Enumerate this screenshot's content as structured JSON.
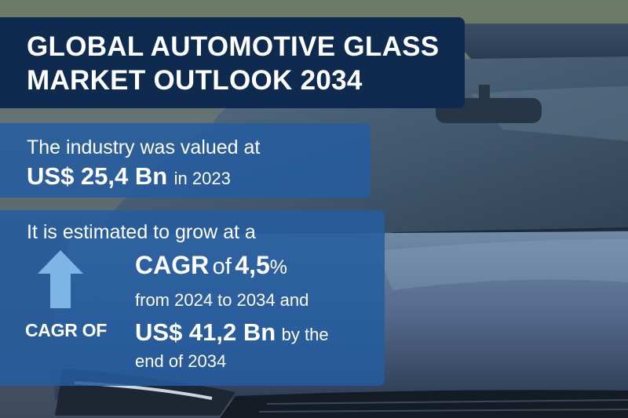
{
  "title": {
    "line1": "GLOBAL AUTOMOTIVE GLASS",
    "line2": "MARKET OUTLOOK 2034"
  },
  "valuation": {
    "intro": "The industry was valued at",
    "amount": "US$ 25,4 Bn",
    "year_text": "in 2023"
  },
  "growth": {
    "intro": "It is estimated to grow at a",
    "badge_label": "CAGR OF",
    "arrow_icon": "up-arrow-icon",
    "cagr_prefix": "CAGR",
    "cagr_of": "of",
    "cagr_rate": "4,5",
    "cagr_pct": "%",
    "period": "from 2024 to 2034  and",
    "forecast_amount": "US$ 41,2 Bn",
    "forecast_suffix": "by the",
    "forecast_end": "end of 2034"
  },
  "colors": {
    "title_bg": "#0e2a4e",
    "panel_bg": "#245ca0",
    "arrow": "#7fb4e6",
    "text": "#ffffff"
  }
}
